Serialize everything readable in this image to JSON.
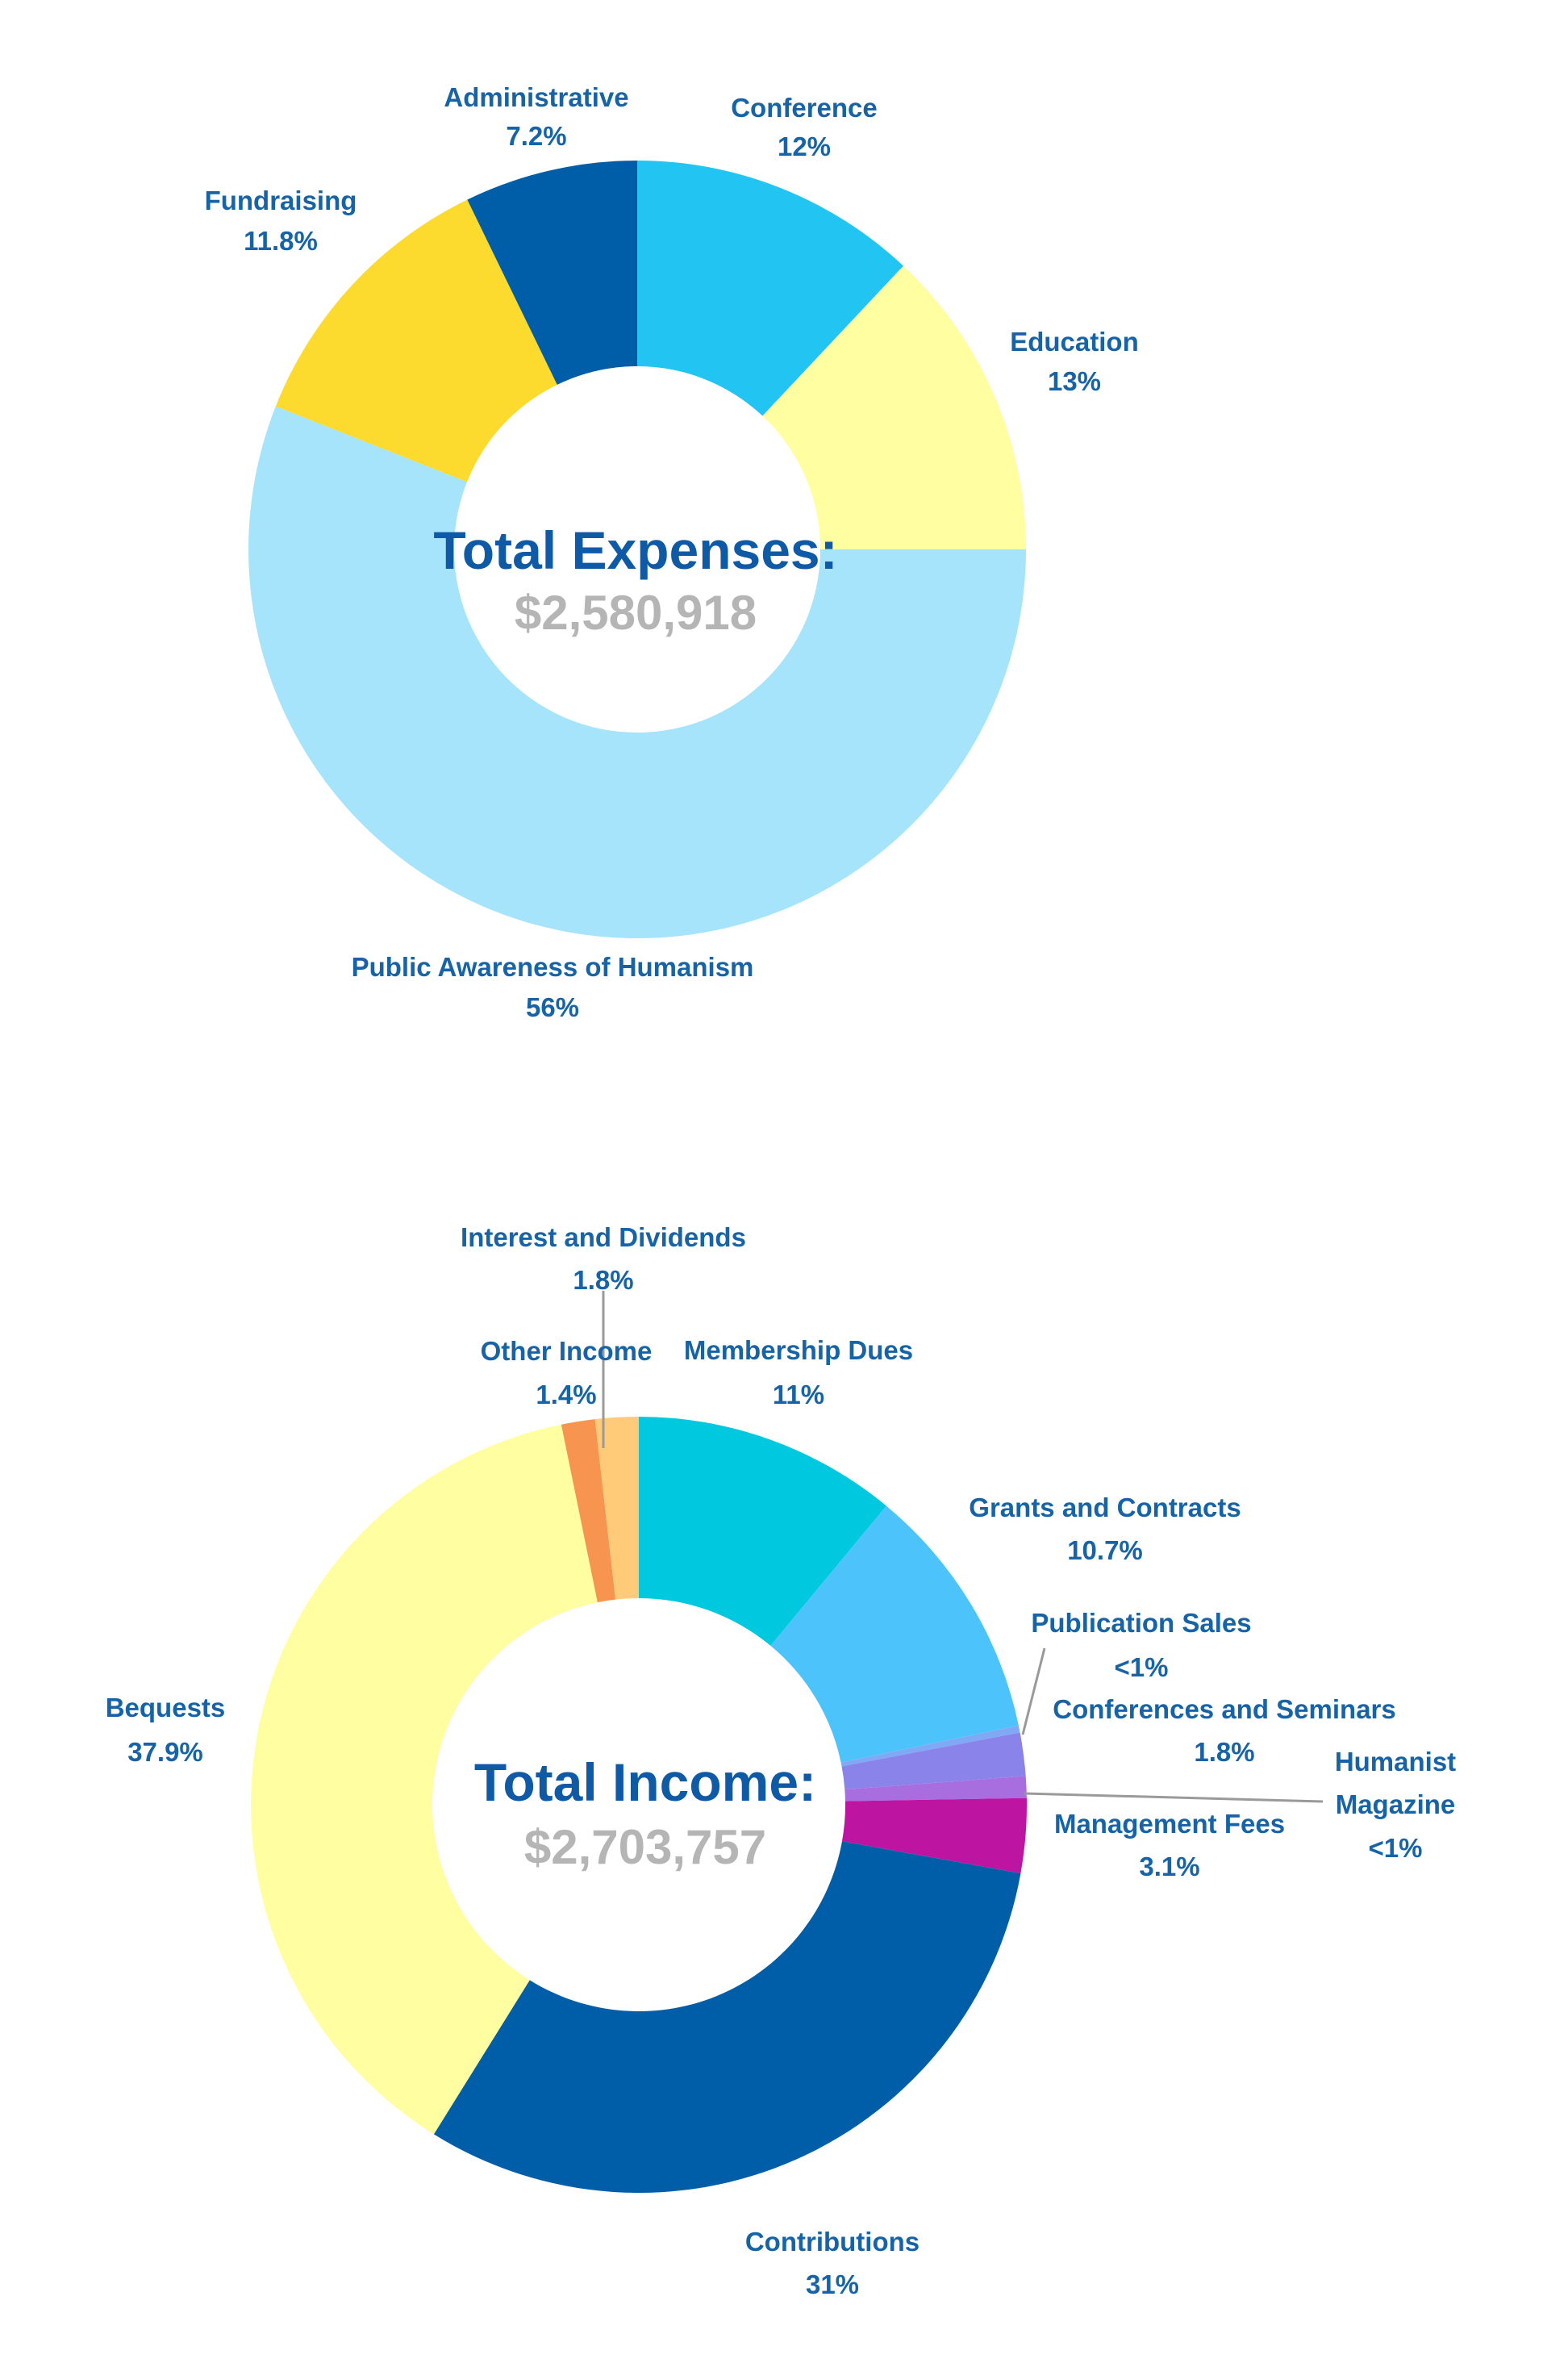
{
  "chart_data": [
    {
      "type": "pie",
      "title": "Total Expenses:",
      "total": "$2,580,918",
      "slices": [
        {
          "name": "Conference",
          "pct_label": "12%",
          "value": 12,
          "color": "#22c4f2"
        },
        {
          "name": "Education",
          "pct_label": "13%",
          "value": 13,
          "color": "#fffea0"
        },
        {
          "name": "Public Awareness of Humanism",
          "pct_label": "56%",
          "value": 56,
          "color": "#a6e4fc"
        },
        {
          "name": "Fundraising",
          "pct_label": "11.8%",
          "value": 11.8,
          "color": "#fdda2e"
        },
        {
          "name": "Administrative",
          "pct_label": "7.2%",
          "value": 7.2,
          "color": "#005ea8"
        }
      ]
    },
    {
      "type": "pie",
      "title": "Total Income:",
      "total": "$2,703,757",
      "slices": [
        {
          "name": "Membership Dues",
          "pct_label": "11%",
          "value": 11,
          "color": "#00c8de"
        },
        {
          "name": "Grants and Contracts",
          "pct_label": "10.7%",
          "value": 10.7,
          "color": "#4cc4fb"
        },
        {
          "name": "Publication Sales",
          "pct_label": "<1%",
          "value": 0.3,
          "color": "#7fa9f4"
        },
        {
          "name": "Conferences and Seminars",
          "pct_label": "1.8%",
          "value": 1.8,
          "color": "#8a84ea"
        },
        {
          "name": "Humanist Magazine",
          "pct_label": "<1%",
          "value": 0.9,
          "color": "#a86ee0"
        },
        {
          "name": "Management Fees",
          "pct_label": "3.1%",
          "value": 3.1,
          "color": "#bd14a2"
        },
        {
          "name": "Contributions",
          "pct_label": "31%",
          "value": 31,
          "color": "#005ea8"
        },
        {
          "name": "Bequests",
          "pct_label": "37.9%",
          "value": 37.9,
          "color": "#fffea0"
        },
        {
          "name": "Other Income",
          "pct_label": "1.4%",
          "value": 1.4,
          "color": "#f79550"
        },
        {
          "name": "Interest and Dividends",
          "pct_label": "1.8%",
          "value": 1.8,
          "color": "#ffcb78"
        }
      ]
    }
  ]
}
